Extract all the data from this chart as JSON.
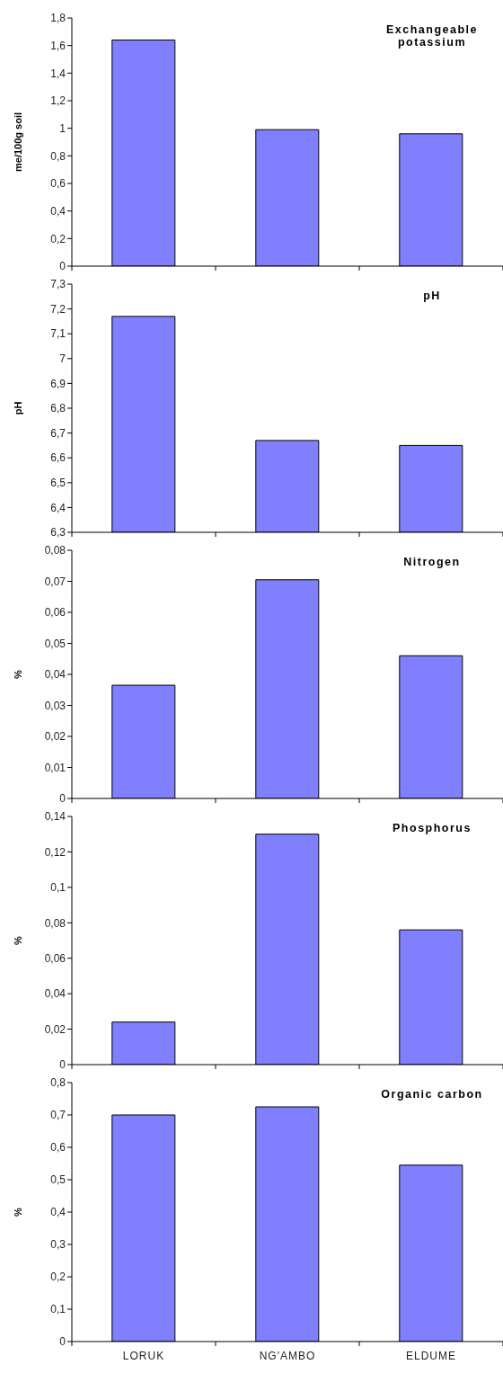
{
  "chart_data": [
    {
      "type": "bar",
      "title": "Exchangeable potassium",
      "ylabel": "me/100g soil",
      "categories": [
        null,
        null,
        null
      ],
      "values": [
        1.64,
        0.99,
        0.96
      ],
      "color": "#8080ff",
      "ylim": [
        0,
        1.8
      ],
      "yticks": [
        0,
        {
          "value": 0.2,
          "label": "0,2"
        },
        {
          "value": 0.4,
          "label": "0,4"
        },
        {
          "value": 0.6,
          "label": "0,6"
        },
        {
          "value": 0.8,
          "label": "0,8"
        },
        1,
        {
          "value": 1.2,
          "label": "1,2"
        },
        {
          "value": 1.4,
          "label": "1,4"
        },
        {
          "value": 1.6,
          "label": "1,6"
        },
        {
          "value": 1.8,
          "label": "1,8"
        }
      ],
      "tick_labels": "y",
      "grid": false,
      "legend": false
    },
    {
      "type": "bar",
      "title": "pH",
      "ylabel": "pH",
      "categories": [
        null,
        null,
        null
      ],
      "values": [
        7.17,
        6.67,
        6.65
      ],
      "color": "#8080ff",
      "ylim": [
        6.3,
        7.3
      ],
      "yticks": [
        {
          "value": 6.3,
          "label": "6,3"
        },
        {
          "value": 6.4,
          "label": "6,4"
        },
        {
          "value": 6.5,
          "label": "6,5"
        },
        {
          "value": 6.6,
          "label": "6,6"
        },
        {
          "value": 6.7,
          "label": "6,7"
        },
        {
          "value": 6.8,
          "label": "6,8"
        },
        {
          "value": 6.9,
          "label": "6,9"
        },
        7,
        {
          "value": 7.1,
          "label": "7,1"
        },
        {
          "value": 7.2,
          "label": "7,2"
        },
        {
          "value": 7.3,
          "label": "7,3"
        }
      ],
      "tick_labels": "y",
      "grid": false,
      "legend": false
    },
    {
      "type": "bar",
      "title": "Nitrogen",
      "ylabel": "%",
      "categories": [
        null,
        null,
        null
      ],
      "values": [
        0.0365,
        0.0705,
        0.046
      ],
      "color": "#8080ff",
      "ylim": [
        0,
        0.08
      ],
      "yticks": [
        0,
        {
          "value": 0.01,
          "label": "0,01"
        },
        {
          "value": 0.02,
          "label": "0,02"
        },
        {
          "value": 0.03,
          "label": "0,03"
        },
        {
          "value": 0.04,
          "label": "0,04"
        },
        {
          "value": 0.05,
          "label": "0,05"
        },
        {
          "value": 0.06,
          "label": "0,06"
        },
        {
          "value": 0.07,
          "label": "0,07"
        },
        {
          "value": 0.08,
          "label": "0,08"
        }
      ],
      "tick_labels": "y",
      "grid": false,
      "legend": false
    },
    {
      "type": "bar",
      "title": "Phosphorus",
      "ylabel": "%",
      "categories": [
        null,
        null,
        null
      ],
      "values": [
        0.024,
        0.13,
        0.076
      ],
      "color": "#8080ff",
      "ylim": [
        0,
        0.14
      ],
      "yticks": [
        0,
        {
          "value": 0.02,
          "label": "0,02"
        },
        {
          "value": 0.04,
          "label": "0,04"
        },
        {
          "value": 0.06,
          "label": "0,06"
        },
        {
          "value": 0.08,
          "label": "0,08"
        },
        {
          "value": 0.1,
          "label": "0,1"
        },
        {
          "value": 0.12,
          "label": "0,12"
        },
        {
          "value": 0.14,
          "label": "0,14"
        }
      ],
      "tick_labels": "y",
      "grid": false,
      "legend": false
    },
    {
      "type": "bar",
      "title": "Organic carbon",
      "ylabel": "%",
      "categories": [
        "LORUK",
        "NG'AMBO",
        "ELDUME"
      ],
      "values": [
        0.7,
        0.725,
        0.545
      ],
      "color": "#8080ff",
      "ylim": [
        0,
        0.8
      ],
      "yticks": [
        0,
        {
          "value": 0.1,
          "label": "0,1"
        },
        {
          "value": 0.2,
          "label": "0,2"
        },
        {
          "value": 0.3,
          "label": "0,3"
        },
        {
          "value": 0.4,
          "label": "0,4"
        },
        {
          "value": 0.5,
          "label": "0,5"
        },
        {
          "value": 0.6,
          "label": "0,6"
        },
        {
          "value": 0.7,
          "label": "0,7"
        },
        {
          "value": 0.8,
          "label": "0,8"
        }
      ],
      "grid": false,
      "legend": false
    }
  ]
}
